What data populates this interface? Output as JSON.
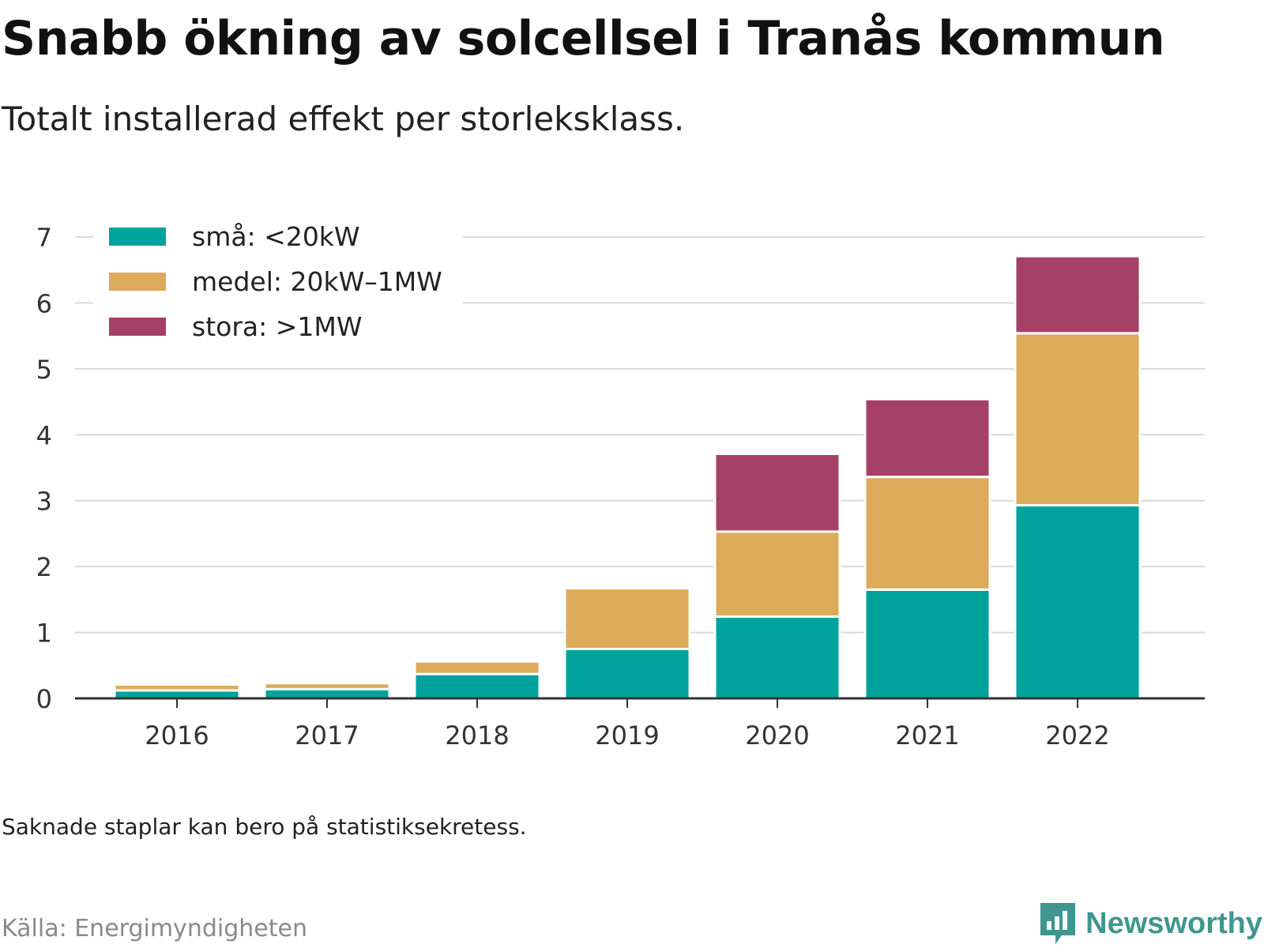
{
  "header": {
    "title": "Snabb ökning av solcellsel i Tranås kommun",
    "subtitle": "Totalt installerad effekt per storleksklass."
  },
  "footer": {
    "note": "Saknade staplar kan bero på statistiksekretess.",
    "source": "Källa: Energimyndigheten",
    "brand": "Newsworthy"
  },
  "colors": {
    "small": "#00a39b",
    "medium": "#dbab5a",
    "large": "#a54066",
    "grid": "#d9d9d9",
    "axis": "#333333",
    "brand": "#3f968f"
  },
  "chart_data": {
    "type": "bar",
    "stacked": true,
    "title": "Snabb ökning av solcellsel i Tranås kommun",
    "subtitle": "Totalt installerad effekt per storleksklass.",
    "xlabel": "",
    "ylabel": "",
    "categories": [
      "2016",
      "2017",
      "2018",
      "2019",
      "2020",
      "2021",
      "2022"
    ],
    "series": [
      {
        "name": "små: <20kW",
        "color": "#00a39b",
        "values": [
          0.12,
          0.14,
          0.37,
          0.75,
          1.24,
          1.65,
          2.93
        ]
      },
      {
        "name": "medel: 20kW–1MW",
        "color": "#dbab5a",
        "values": [
          0.09,
          0.09,
          0.19,
          0.92,
          1.29,
          1.71,
          2.61
        ]
      },
      {
        "name": "stora: >1MW",
        "color": "#a54066",
        "values": [
          0,
          0,
          0,
          0,
          1.18,
          1.18,
          1.17
        ]
      }
    ],
    "ylim": [
      0,
      7
    ],
    "yticks": [
      0,
      1,
      2,
      3,
      4,
      5,
      6,
      7
    ],
    "grid": true,
    "legend": "top-left"
  }
}
